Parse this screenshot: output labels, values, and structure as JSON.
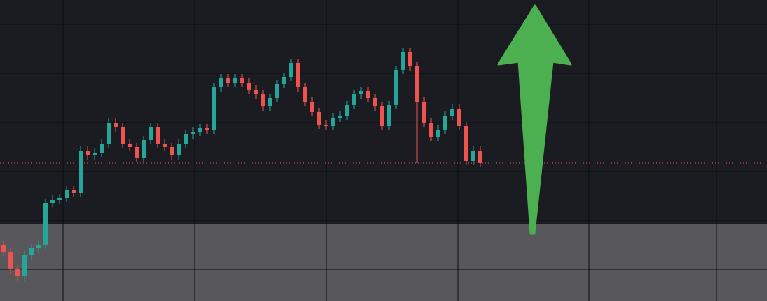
{
  "chart_data": {
    "type": "candlestick",
    "ylim": [
      0,
      430
    ],
    "up_color": "#26a69a",
    "down_color": "#ef5350",
    "last_price_line": true,
    "open": [
      80,
      70,
      45,
      35,
      65,
      75,
      80,
      140,
      145,
      147,
      158,
      155,
      215,
      208,
      212,
      225,
      255,
      248,
      225,
      220,
      205,
      230,
      248,
      225,
      220,
      208,
      225,
      238,
      242,
      247,
      245,
      305,
      318,
      312,
      318,
      312,
      302,
      295,
      278,
      290,
      310,
      320,
      340,
      305,
      285,
      270,
      252,
      250,
      262,
      265,
      280,
      295,
      300,
      290,
      278,
      250,
      280,
      330,
      355,
      335,
      285,
      255,
      235,
      245,
      265,
      275,
      250,
      200,
      215
    ],
    "high": [
      86,
      76,
      51,
      71,
      81,
      86,
      146,
      151,
      153,
      164,
      164,
      221,
      221,
      218,
      231,
      261,
      261,
      254,
      231,
      226,
      236,
      254,
      254,
      231,
      226,
      231,
      244,
      248,
      253,
      253,
      311,
      324,
      324,
      324,
      324,
      318,
      308,
      301,
      296,
      316,
      326,
      346,
      346,
      311,
      291,
      276,
      258,
      268,
      271,
      286,
      301,
      306,
      306,
      296,
      284,
      286,
      336,
      361,
      361,
      341,
      291,
      261,
      251,
      271,
      281,
      281,
      256,
      221,
      221
    ],
    "low": [
      64,
      39,
      29,
      29,
      59,
      69,
      74,
      134,
      139,
      141,
      149,
      149,
      202,
      202,
      206,
      219,
      242,
      219,
      214,
      199,
      199,
      224,
      219,
      214,
      202,
      202,
      219,
      232,
      236,
      239,
      239,
      299,
      306,
      306,
      306,
      296,
      289,
      272,
      272,
      284,
      304,
      314,
      299,
      279,
      264,
      246,
      244,
      244,
      256,
      259,
      274,
      289,
      284,
      272,
      244,
      244,
      274,
      324,
      329,
      197,
      249,
      229,
      229,
      239,
      259,
      244,
      194,
      194,
      191
    ],
    "close": [
      70,
      45,
      35,
      65,
      75,
      80,
      140,
      145,
      147,
      158,
      155,
      215,
      208,
      212,
      225,
      255,
      248,
      225,
      220,
      205,
      230,
      248,
      225,
      220,
      208,
      225,
      238,
      242,
      247,
      245,
      305,
      318,
      312,
      318,
      312,
      302,
      295,
      278,
      290,
      310,
      320,
      340,
      305,
      285,
      270,
      252,
      250,
      262,
      265,
      280,
      295,
      300,
      290,
      278,
      250,
      280,
      330,
      355,
      335,
      285,
      255,
      235,
      245,
      265,
      275,
      250,
      200,
      215,
      197
    ]
  }
}
